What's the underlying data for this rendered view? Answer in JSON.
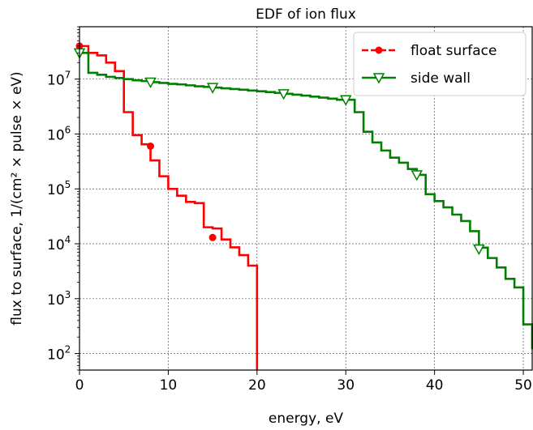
{
  "chart_data": {
    "type": "line",
    "title": "EDF of ion flux",
    "xlabel": "energy, eV",
    "ylabel": "flux to surface, 1/(cm² × pulse × eV)",
    "xlim": [
      0,
      51
    ],
    "ylim": [
      50,
      90000000
    ],
    "yscale": "log",
    "grid": true,
    "legend_position": "top-right",
    "x_ticks": [
      {
        "value": 0,
        "label": "0"
      },
      {
        "value": 10,
        "label": "10"
      },
      {
        "value": 20,
        "label": "20"
      },
      {
        "value": 30,
        "label": "30"
      },
      {
        "value": 40,
        "label": "40"
      },
      {
        "value": 50,
        "label": "50"
      }
    ],
    "y_ticks": [
      {
        "value": 100,
        "base": "10",
        "exp": "2"
      },
      {
        "value": 1000,
        "base": "10",
        "exp": "3"
      },
      {
        "value": 10000,
        "base": "10",
        "exp": "4"
      },
      {
        "value": 100000,
        "base": "10",
        "exp": "5"
      },
      {
        "value": 1000000,
        "base": "10",
        "exp": "6"
      },
      {
        "value": 10000000,
        "base": "10",
        "exp": "7"
      }
    ],
    "series": [
      {
        "name": "float surface",
        "color": "#ff0000",
        "marker": "circle",
        "step_x": [
          0,
          1,
          2,
          3,
          4,
          5,
          6,
          7,
          8,
          9,
          10,
          11,
          12,
          13,
          14,
          15,
          16,
          17,
          18,
          19,
          20
        ],
        "step_y": [
          40000000,
          30000000,
          27000000,
          20000000,
          14000000,
          2500000,
          950000,
          650000,
          330000,
          170000,
          100000,
          75000,
          58000,
          55000,
          20000,
          19000,
          12000,
          8600,
          6200,
          4000,
          3700
        ],
        "markers": [
          {
            "x": 0,
            "y": 40000000
          },
          {
            "x": 8,
            "y": 600000
          },
          {
            "x": 15,
            "y": 13000
          }
        ]
      },
      {
        "name": "side wall",
        "color": "#008000",
        "marker": "triangle-down",
        "step_x": [
          0,
          1,
          2,
          3,
          4,
          5,
          6,
          7,
          8,
          9,
          10,
          11,
          12,
          13,
          14,
          15,
          16,
          17,
          18,
          19,
          20,
          21,
          22,
          23,
          24,
          25,
          26,
          27,
          28,
          29,
          30,
          31,
          32,
          33,
          34,
          35,
          36,
          37,
          38,
          39,
          40,
          41,
          42,
          43,
          44,
          45,
          46,
          47,
          48,
          49,
          50,
          51
        ],
        "step_y": [
          30000000,
          13000000,
          12000000,
          11000000,
          10500000,
          10000000,
          9500000,
          9200000,
          8800000,
          8500000,
          8200000,
          8000000,
          7700000,
          7400000,
          7200000,
          7000000,
          6800000,
          6600000,
          6400000,
          6200000,
          6000000,
          5800000,
          5600000,
          5400000,
          5200000,
          5000000,
          4800000,
          4600000,
          4400000,
          4200000,
          4200000,
          2500000,
          1100000,
          700000,
          500000,
          370000,
          300000,
          230000,
          180000,
          80000,
          60000,
          46000,
          34000,
          26000,
          17000,
          8500,
          5500,
          3700,
          2300,
          1600,
          340,
          120
        ],
        "markers": [
          {
            "x": 0,
            "y": 30000000
          },
          {
            "x": 8,
            "y": 8800000
          },
          {
            "x": 15,
            "y": 7000000
          },
          {
            "x": 23,
            "y": 5400000
          },
          {
            "x": 30,
            "y": 4200000
          },
          {
            "x": 38,
            "y": 180000
          },
          {
            "x": 45,
            "y": 8000
          }
        ]
      }
    ]
  }
}
